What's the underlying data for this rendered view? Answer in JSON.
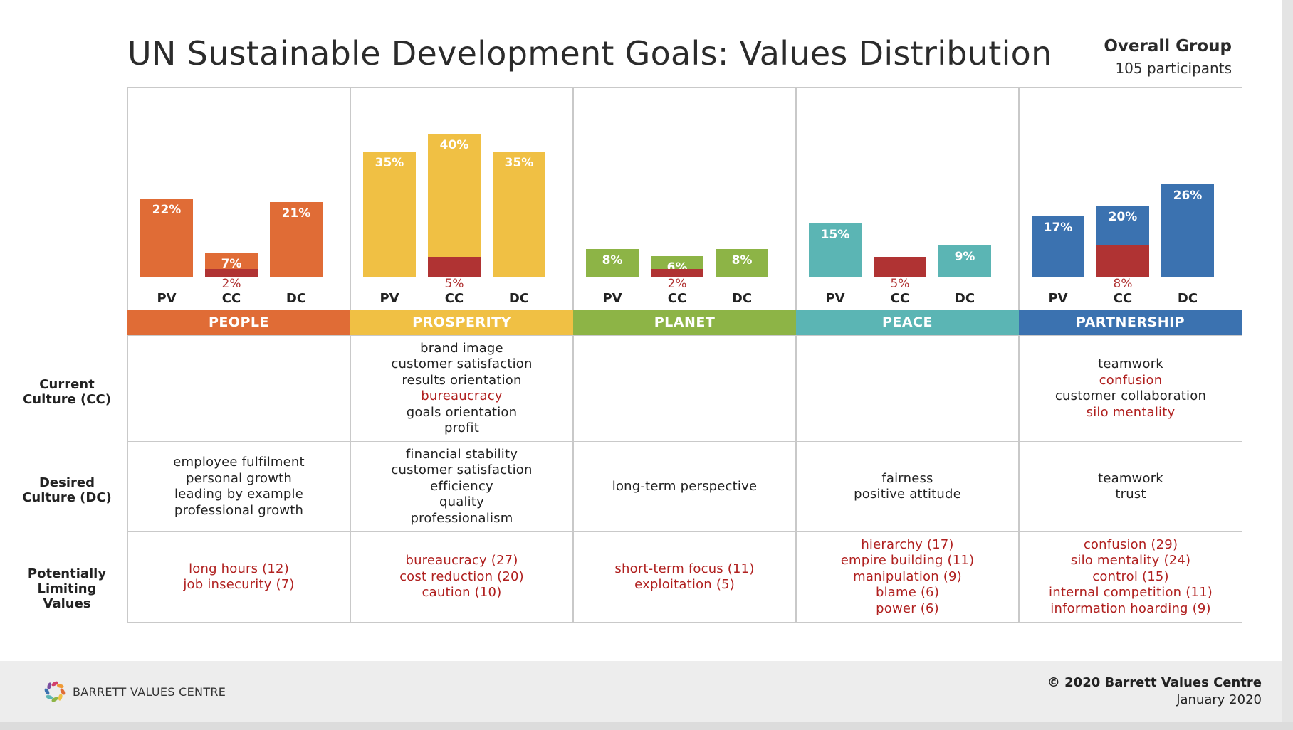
{
  "page": {
    "title": "UN Sustainable Development Goals: Values Distribution",
    "group_name": "Overall Group",
    "group_count": "105 participants"
  },
  "row_labels": {
    "current": "Current Culture (CC)",
    "desired": "Desired Culture (DC)",
    "limiting": "Potentially Limiting Values"
  },
  "footer": {
    "logo_text": "BARRETT VALUES CENTRE",
    "copyright": "© 2020 Barrett Values Centre",
    "date": "January 2020"
  },
  "colors": {
    "people": "#e06c36",
    "prosperity": "#f0c044",
    "planet": "#8db446",
    "peace": "#5bb5b4",
    "partnership": "#3b72b0",
    "limiting": "#b03333"
  },
  "chart_data": {
    "type": "bar",
    "categories": [
      "PV",
      "CC",
      "DC"
    ],
    "ylim": [
      0,
      40
    ],
    "groups": [
      {
        "name": "PEOPLE",
        "values": [
          22,
          7,
          21
        ],
        "limiting": [
          null,
          2,
          null
        ],
        "current_culture": [],
        "desired_culture": [
          "employee fulfilment",
          "personal growth",
          "leading by example",
          "professional growth"
        ],
        "limiting_values": [
          "long hours (12)",
          "job insecurity (7)"
        ]
      },
      {
        "name": "PROSPERITY",
        "values": [
          35,
          40,
          35
        ],
        "limiting": [
          null,
          5,
          null
        ],
        "current_culture": [
          {
            "text": "brand image"
          },
          {
            "text": "customer satisfaction"
          },
          {
            "text": "results orientation"
          },
          {
            "text": "bureaucracy",
            "limiting": true
          },
          {
            "text": "goals orientation"
          },
          {
            "text": "profit"
          }
        ],
        "desired_culture": [
          "financial stability",
          "customer satisfaction",
          "efficiency",
          "quality",
          "professionalism"
        ],
        "limiting_values": [
          "bureaucracy (27)",
          "cost reduction (20)",
          "caution (10)"
        ]
      },
      {
        "name": "PLANET",
        "values": [
          8,
          6,
          8
        ],
        "limiting": [
          null,
          2,
          null
        ],
        "current_culture": [],
        "desired_culture": [
          "long-term perspective"
        ],
        "limiting_values": [
          "short-term focus (11)",
          "exploitation (5)"
        ]
      },
      {
        "name": "PEACE",
        "values": [
          15,
          5,
          9
        ],
        "limiting": [
          null,
          5,
          null
        ],
        "current_culture": [],
        "desired_culture": [
          "fairness",
          "positive attitude"
        ],
        "limiting_values": [
          "hierarchy (17)",
          "empire building (11)",
          "manipulation (9)",
          "blame (6)",
          "power (6)"
        ]
      },
      {
        "name": "PARTNERSHIP",
        "values": [
          17,
          20,
          26
        ],
        "limiting": [
          null,
          8,
          null
        ],
        "current_culture": [
          {
            "text": "teamwork"
          },
          {
            "text": "confusion",
            "limiting": true
          },
          {
            "text": "customer collaboration"
          },
          {
            "text": "silo mentality",
            "limiting": true
          }
        ],
        "desired_culture": [
          "teamwork",
          "trust"
        ],
        "limiting_values": [
          "confusion (29)",
          "silo mentality (24)",
          "control (15)",
          "internal competition (11)",
          "information hoarding (9)"
        ]
      }
    ]
  }
}
